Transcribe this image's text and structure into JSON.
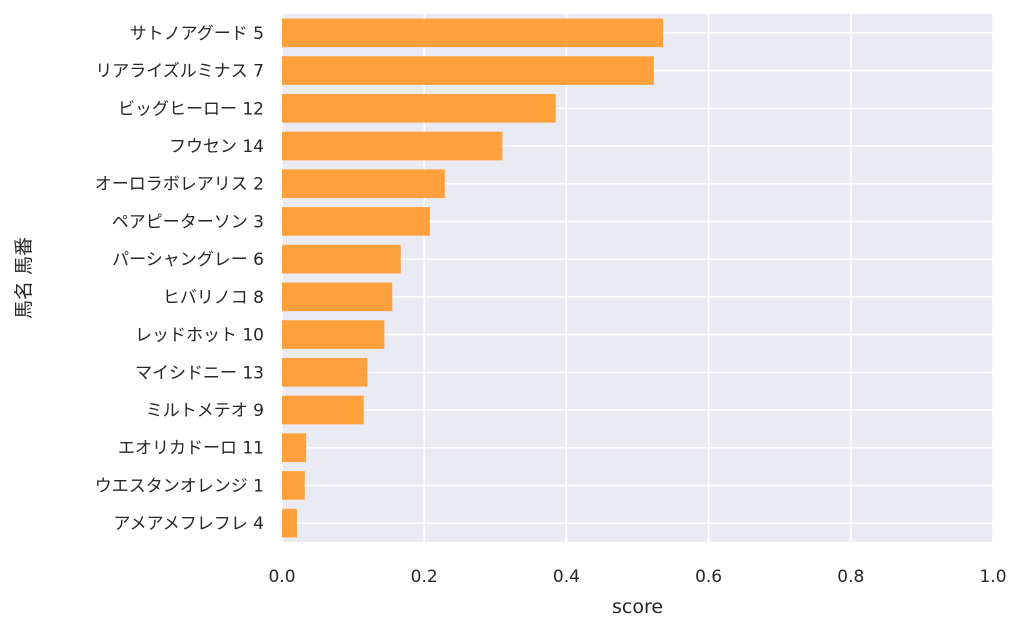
{
  "chart_data": {
    "type": "bar",
    "orientation": "horizontal",
    "categories": [
      "サトノアグード 5",
      "リアライズルミナス 7",
      "ビッグヒーロー 12",
      "フウセン 14",
      "オーロラボレアリス 2",
      "ペアピーターソン 3",
      "パーシャングレー 6",
      "ヒバリノコ 8",
      "レッドホット 10",
      "マイシドニー 13",
      "ミルトメテオ 9",
      "エオリカドーロ 11",
      "ウエスタンオレンジ 1",
      "アメアメフレフレ 4"
    ],
    "values": [
      0.536,
      0.523,
      0.385,
      0.31,
      0.229,
      0.208,
      0.167,
      0.155,
      0.144,
      0.12,
      0.115,
      0.034,
      0.032,
      0.021
    ],
    "xlabel": "score",
    "ylabel": "馬名 馬番",
    "xlim": [
      0,
      1.0
    ],
    "xticks": [
      "0.0",
      "0.2",
      "0.4",
      "0.6",
      "0.8",
      "1.0"
    ],
    "grid": true,
    "bar_color": "#ff9a2e",
    "background_color": "#eaeaf2"
  }
}
